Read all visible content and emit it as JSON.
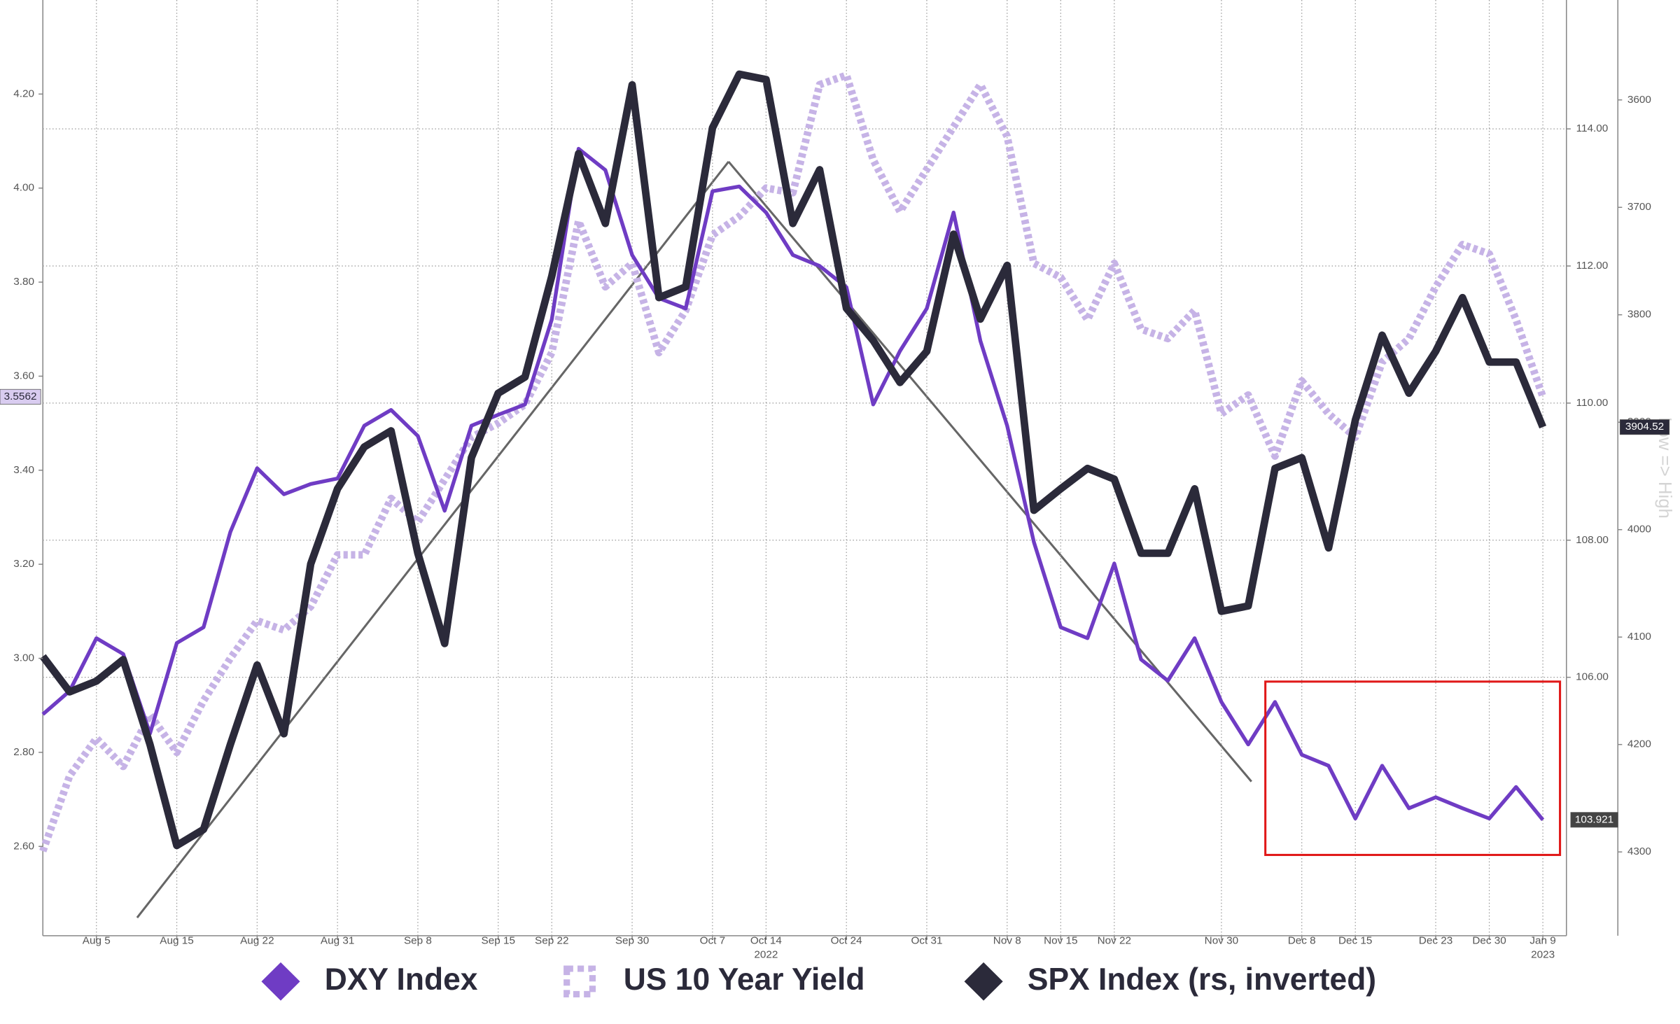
{
  "chart_data": {
    "type": "line",
    "categories": [
      null,
      null,
      "Aug 5",
      null,
      null,
      "Aug 15",
      null,
      null,
      "Aug 22",
      null,
      null,
      "Aug 31",
      null,
      null,
      "Sep 8",
      null,
      null,
      "Sep 15",
      null,
      "Sep 22",
      null,
      null,
      "Sep 30",
      null,
      null,
      "Oct 7",
      null,
      "Oct 14",
      null,
      null,
      "Oct 24",
      null,
      null,
      "Oct 31",
      null,
      null,
      "Nov 8",
      null,
      "Nov 15",
      null,
      "Nov 22",
      null,
      null,
      null,
      "Nov 30",
      null,
      null,
      "Dec 8",
      null,
      "Dec 15",
      null,
      null,
      "Dec 23",
      null,
      "Dec 30",
      null,
      "Jan 9"
    ],
    "year_labels": [
      null,
      null,
      null,
      null,
      null,
      null,
      null,
      null,
      null,
      null,
      null,
      null,
      null,
      null,
      null,
      null,
      null,
      null,
      null,
      null,
      null,
      null,
      null,
      null,
      null,
      null,
      null,
      "2022",
      null,
      null,
      null,
      null,
      null,
      null,
      null,
      null,
      null,
      null,
      null,
      null,
      null,
      null,
      null,
      null,
      null,
      null,
      null,
      null,
      null,
      null,
      null,
      null,
      null,
      null,
      null,
      null,
      "2023"
    ],
    "series": [
      {
        "name": "DXY Index",
        "color": "#6f3cc4",
        "style": "solid",
        "axis": "y2",
        "values": [
          105.46,
          105.8,
          106.57,
          106.34,
          105.18,
          106.5,
          106.73,
          108.12,
          109.05,
          108.67,
          108.82,
          108.9,
          109.67,
          109.9,
          109.52,
          108.43,
          109.67,
          109.83,
          109.98,
          111.22,
          113.71,
          113.4,
          112.16,
          111.53,
          111.38,
          113.09,
          113.16,
          112.78,
          112.16,
          112.0,
          111.69,
          109.98,
          110.76,
          111.38,
          112.78,
          110.91,
          109.67,
          107.97,
          106.73,
          106.57,
          107.66,
          106.26,
          105.95,
          106.57,
          105.64,
          105.02,
          105.64,
          104.87,
          104.71,
          103.94,
          104.71,
          104.09,
          104.25,
          104.09,
          103.94,
          104.4,
          103.921
        ]
      },
      {
        "name": "US 10 Year Yield",
        "color": "#c6b3e6",
        "style": "dotted",
        "axis": "y",
        "values": [
          2.59,
          2.75,
          2.83,
          2.77,
          2.88,
          2.8,
          2.91,
          3.0,
          3.08,
          3.06,
          3.11,
          3.22,
          3.22,
          3.34,
          3.29,
          3.38,
          3.47,
          3.5,
          3.54,
          3.65,
          3.93,
          3.79,
          3.84,
          3.65,
          3.74,
          3.9,
          3.94,
          4.0,
          3.99,
          4.22,
          4.24,
          4.06,
          3.95,
          4.04,
          4.13,
          4.22,
          4.11,
          3.84,
          3.81,
          3.72,
          3.84,
          3.7,
          3.68,
          3.74,
          3.52,
          3.56,
          3.43,
          3.59,
          3.52,
          3.47,
          3.63,
          3.68,
          3.79,
          3.88,
          3.86,
          3.72,
          3.5562
        ]
      },
      {
        "name": "SPX Index (rs, inverted)",
        "color": "#2b2a3a",
        "style": "solid",
        "axis": "y3",
        "values": [
          4118,
          4151,
          4141,
          4121,
          4200,
          4294,
          4279,
          4200,
          4126,
          4190,
          4032,
          3962,
          3923,
          3908,
          4022,
          4106,
          3933,
          3873,
          3858,
          3764,
          3650,
          3715,
          3586,
          3784,
          3774,
          3626,
          3576,
          3581,
          3715,
          3665,
          3794,
          3824,
          3863,
          3834,
          3725,
          3804,
          3754,
          3982,
          3962,
          3943,
          3953,
          4022,
          4022,
          3962,
          4076,
          4071,
          3943,
          3933,
          4017,
          3898,
          3819,
          3873,
          3834,
          3784,
          3844,
          3844,
          3904.52
        ]
      }
    ],
    "ylim": [
      2.41,
      4.4
    ],
    "yticks": [
      {
        "value": 2.6,
        "label": "2.60"
      },
      {
        "value": 2.8,
        "label": "2.80"
      },
      {
        "value": 3.0,
        "label": "3.00"
      },
      {
        "value": 3.2,
        "label": "3.20"
      },
      {
        "value": 3.4,
        "label": "3.40"
      },
      {
        "value": 3.6,
        "label": "3.60"
      },
      {
        "value": 3.8,
        "label": "3.80"
      },
      {
        "value": 4.0,
        "label": "4.00"
      },
      {
        "value": 4.2,
        "label": "4.20"
      }
    ],
    "y2lim": [
      102.23,
      115.88
    ],
    "y2ticks": [
      {
        "value": 106,
        "label": "106.00"
      },
      {
        "value": 108,
        "label": "108.00"
      },
      {
        "value": 110,
        "label": "110.00"
      },
      {
        "value": 112,
        "label": "112.00"
      },
      {
        "value": 114,
        "label": "114.00"
      }
    ],
    "y3lim": [
      4378,
      3507
    ],
    "y3ticks": [
      3600,
      3700,
      3800,
      3900,
      4000,
      4100,
      4200,
      4300
    ],
    "y3label": "Low => High",
    "grid": true,
    "legend": "bottom"
  }
}
